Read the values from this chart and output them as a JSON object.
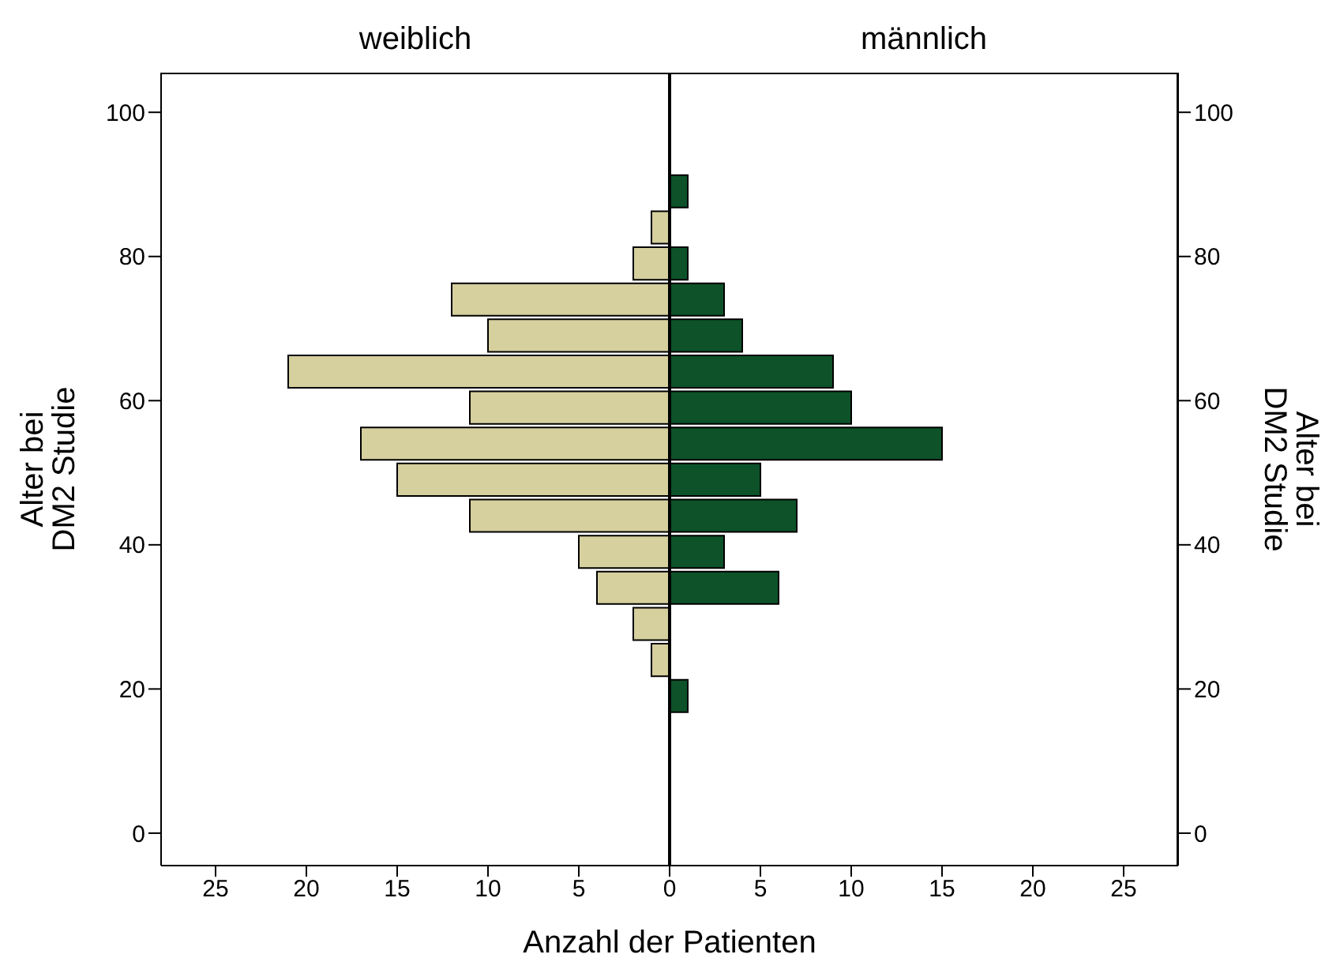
{
  "chart_data": [
    {
      "type": "histogram",
      "orientation": "horizontal",
      "title": "weiblich",
      "xlabel": "Anzahl der Patienten",
      "ylabel": "Alter bei\nDM2 Studie",
      "bins": [
        16.5,
        21.5,
        26.5,
        31.5,
        36.5,
        41.5,
        46.5,
        51.5,
        56.5,
        61.5,
        66.5,
        71.5,
        76.5,
        81.5,
        86.5,
        91.5
      ],
      "values": [
        0,
        1,
        2,
        4,
        5,
        11,
        15,
        17,
        11,
        21,
        10,
        12,
        2,
        1,
        0
      ],
      "color": "#d6cf9e",
      "xlim": [
        28,
        0
      ],
      "xticks": [
        25,
        20,
        15,
        10,
        5,
        0
      ],
      "ylim": [
        -4.5,
        105.5
      ],
      "yticks": [
        0,
        20,
        40,
        60,
        80,
        100
      ],
      "grid": false
    },
    {
      "type": "histogram",
      "orientation": "horizontal",
      "title": "männlich",
      "ylabel": "Alter bei\nDM2 Studie",
      "bins": [
        16.5,
        21.5,
        26.5,
        31.5,
        36.5,
        41.5,
        46.5,
        51.5,
        56.5,
        61.5,
        66.5,
        71.5,
        76.5,
        81.5,
        86.5,
        91.5
      ],
      "values": [
        1,
        0,
        0,
        6,
        3,
        7,
        5,
        15,
        10,
        9,
        4,
        3,
        1,
        0,
        1
      ],
      "color": "#0d5229",
      "xlim": [
        0,
        28
      ],
      "xticks": [
        5,
        10,
        15,
        20,
        25
      ],
      "ylim": [
        -4.5,
        105.5
      ],
      "yticks": [
        0,
        20,
        40,
        60,
        80,
        100
      ],
      "grid": false
    }
  ]
}
